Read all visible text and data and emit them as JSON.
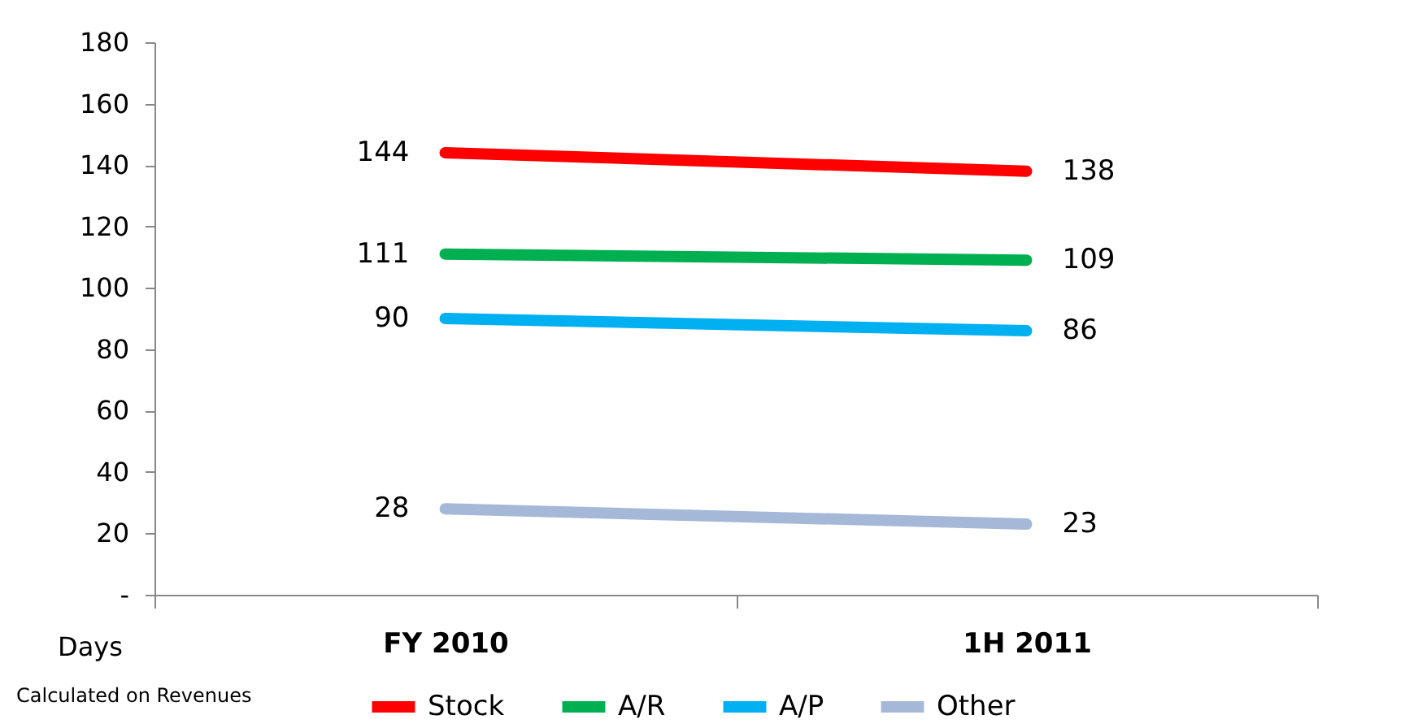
{
  "chart_data": {
    "type": "line",
    "categories": [
      "FY 2010",
      "1H 2011"
    ],
    "ylabel": "Days",
    "ylim": [
      0,
      180
    ],
    "yticks": [
      {
        "value": 0,
        "label": "-"
      },
      20,
      40,
      60,
      80,
      100,
      120,
      140,
      160,
      180
    ],
    "series": [
      {
        "name": "Stock",
        "color": "#ff0000",
        "values": [
          144,
          138
        ]
      },
      {
        "name": "A/R",
        "color": "#00b050",
        "values": [
          111,
          109
        ]
      },
      {
        "name": "A/P",
        "color": "#00b0f0",
        "values": [
          90,
          86
        ]
      },
      {
        "name": "Other",
        "color": "#a6b8d8",
        "values": [
          28,
          23
        ]
      }
    ],
    "data_labels": true,
    "grid": false,
    "legend": "bottom",
    "annotations": [
      "Calculated on Revenues"
    ]
  }
}
